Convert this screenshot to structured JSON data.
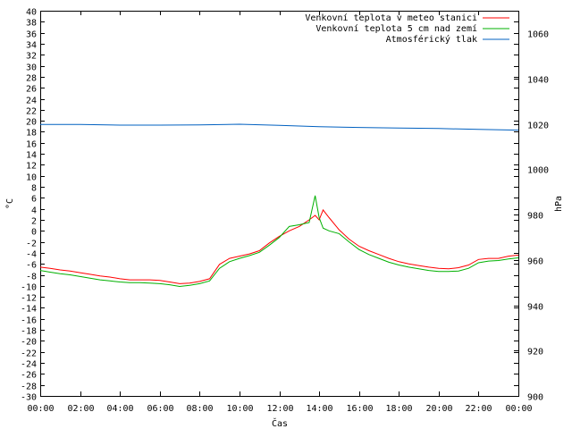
{
  "chart_data": {
    "type": "line",
    "xlabel": "Čas",
    "ylabel_left": "°C",
    "ylabel_right": "hPa",
    "x_ticks": [
      "00:00",
      "02:00",
      "04:00",
      "06:00",
      "08:00",
      "10:00",
      "12:00",
      "14:00",
      "16:00",
      "18:00",
      "20:00",
      "22:00",
      "00:00"
    ],
    "xlim_hours": [
      0,
      24
    ],
    "ylim_left": [
      -30,
      40
    ],
    "ylim_right": [
      900,
      1070
    ],
    "left_ticks": [
      40,
      38,
      36,
      34,
      32,
      30,
      28,
      26,
      24,
      22,
      20,
      18,
      16,
      14,
      12,
      10,
      8,
      6,
      4,
      2,
      0,
      -2,
      -4,
      -6,
      -8,
      -10,
      -12,
      -14,
      -16,
      -18,
      -20,
      -22,
      -24,
      -26,
      -28,
      -30
    ],
    "right_ticks": [
      1060,
      1040,
      1020,
      1000,
      980,
      960,
      940,
      920,
      900
    ],
    "legend_position": "top-right",
    "grid": false,
    "series": [
      {
        "name": "Venkovní teplota v meteo stanici",
        "axis": "left",
        "color": "#ff0000",
        "points": [
          [
            0,
            -6.6
          ],
          [
            0.5,
            -6.8
          ],
          [
            1,
            -7.1
          ],
          [
            1.5,
            -7.3
          ],
          [
            2,
            -7.6
          ],
          [
            2.5,
            -7.9
          ],
          [
            3,
            -8.2
          ],
          [
            3.5,
            -8.4
          ],
          [
            4,
            -8.7
          ],
          [
            4.5,
            -8.9
          ],
          [
            5,
            -8.9
          ],
          [
            5.5,
            -8.9
          ],
          [
            6,
            -9.0
          ],
          [
            6.5,
            -9.3
          ],
          [
            7,
            -9.6
          ],
          [
            7.5,
            -9.5
          ],
          [
            8,
            -9.2
          ],
          [
            8.5,
            -8.7
          ],
          [
            9,
            -6.1
          ],
          [
            9.5,
            -5.0
          ],
          [
            10,
            -4.6
          ],
          [
            10.5,
            -4.2
          ],
          [
            11,
            -3.6
          ],
          [
            11.5,
            -2.2
          ],
          [
            12,
            -1.0
          ],
          [
            12.5,
            0.0
          ],
          [
            13,
            0.8
          ],
          [
            13.5,
            2.0
          ],
          [
            13.8,
            2.8
          ],
          [
            14,
            2.0
          ],
          [
            14.2,
            3.8
          ],
          [
            14.5,
            2.4
          ],
          [
            15,
            0.2
          ],
          [
            15.5,
            -1.5
          ],
          [
            16,
            -2.8
          ],
          [
            16.5,
            -3.6
          ],
          [
            17,
            -4.3
          ],
          [
            17.5,
            -5.0
          ],
          [
            18,
            -5.6
          ],
          [
            18.5,
            -6.0
          ],
          [
            19,
            -6.3
          ],
          [
            19.5,
            -6.6
          ],
          [
            20,
            -6.8
          ],
          [
            20.5,
            -6.9
          ],
          [
            21,
            -6.7
          ],
          [
            21.5,
            -6.2
          ],
          [
            22,
            -5.2
          ],
          [
            22.5,
            -5.0
          ],
          [
            23,
            -5.0
          ],
          [
            23.5,
            -4.6
          ],
          [
            24,
            -4.4
          ]
        ]
      },
      {
        "name": "Venkovní teplota 5 cm nad zemí",
        "axis": "left",
        "color": "#00b000",
        "points": [
          [
            0,
            -7.2
          ],
          [
            0.5,
            -7.5
          ],
          [
            1,
            -7.8
          ],
          [
            1.5,
            -8.0
          ],
          [
            2,
            -8.3
          ],
          [
            2.5,
            -8.6
          ],
          [
            3,
            -8.9
          ],
          [
            3.5,
            -9.1
          ],
          [
            4,
            -9.3
          ],
          [
            4.5,
            -9.4
          ],
          [
            5,
            -9.4
          ],
          [
            5.5,
            -9.5
          ],
          [
            6,
            -9.6
          ],
          [
            6.5,
            -9.8
          ],
          [
            7,
            -10.1
          ],
          [
            7.5,
            -9.9
          ],
          [
            8,
            -9.6
          ],
          [
            8.5,
            -9.1
          ],
          [
            9,
            -6.8
          ],
          [
            9.5,
            -5.6
          ],
          [
            10,
            -5.0
          ],
          [
            10.5,
            -4.5
          ],
          [
            11,
            -3.9
          ],
          [
            11.5,
            -2.6
          ],
          [
            12,
            -1.2
          ],
          [
            12.5,
            0.8
          ],
          [
            13,
            1.1
          ],
          [
            13.5,
            1.5
          ],
          [
            13.8,
            6.4
          ],
          [
            14,
            2.4
          ],
          [
            14.2,
            0.5
          ],
          [
            14.5,
            0.0
          ],
          [
            15,
            -0.5
          ],
          [
            15.5,
            -2.0
          ],
          [
            16,
            -3.4
          ],
          [
            16.5,
            -4.3
          ],
          [
            17,
            -5.0
          ],
          [
            17.5,
            -5.7
          ],
          [
            18,
            -6.2
          ],
          [
            18.5,
            -6.6
          ],
          [
            19,
            -6.9
          ],
          [
            19.5,
            -7.2
          ],
          [
            20,
            -7.4
          ],
          [
            20.5,
            -7.4
          ],
          [
            21,
            -7.3
          ],
          [
            21.5,
            -6.8
          ],
          [
            22,
            -5.8
          ],
          [
            22.5,
            -5.5
          ],
          [
            23,
            -5.4
          ],
          [
            23.5,
            -5.1
          ],
          [
            24,
            -4.9
          ]
        ]
      },
      {
        "name": "Atmosférický tlak",
        "axis": "right",
        "color": "#0060c0",
        "points": [
          [
            0,
            1019.8
          ],
          [
            2,
            1019.8
          ],
          [
            4,
            1019.5
          ],
          [
            6,
            1019.5
          ],
          [
            8,
            1019.6
          ],
          [
            10,
            1019.9
          ],
          [
            12,
            1019.4
          ],
          [
            14,
            1018.8
          ],
          [
            16,
            1018.5
          ],
          [
            18,
            1018.2
          ],
          [
            20,
            1018.0
          ],
          [
            22,
            1017.6
          ],
          [
            24,
            1017.3
          ]
        ]
      }
    ]
  }
}
